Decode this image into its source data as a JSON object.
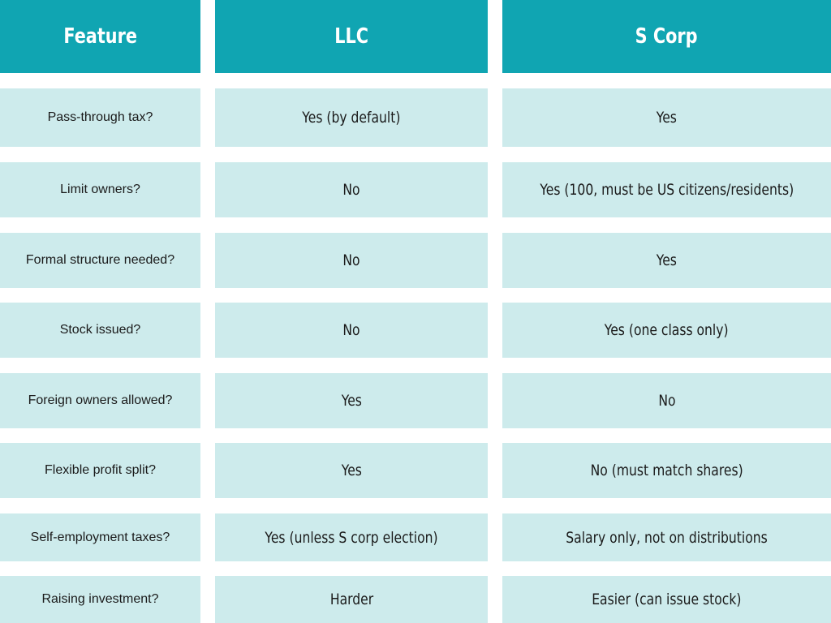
{
  "header": {
    "feature": "Feature",
    "llc": "LLC",
    "scorp": "S Corp"
  },
  "rows": [
    {
      "feature": "Pass-through tax?",
      "llc": "Yes (by default)",
      "scorp": "Yes"
    },
    {
      "feature": "Limit owners?",
      "llc": "No",
      "scorp": "Yes (100, must be US citizens/residents)"
    },
    {
      "feature": "Formal structure needed?",
      "llc": "No",
      "scorp": "Yes"
    },
    {
      "feature": "Stock issued?",
      "llc": "No",
      "scorp": "Yes (one class only)"
    },
    {
      "feature": "Foreign owners allowed?",
      "llc": "Yes",
      "scorp": "No"
    },
    {
      "feature": "Flexible profit split?",
      "llc": "Yes",
      "scorp": "No (must match shares)"
    },
    {
      "feature": "Self-employment taxes?",
      "llc": "Yes (unless S corp election)",
      "scorp": "Salary only, not on distributions"
    },
    {
      "feature": "Raising investment?",
      "llc": "Harder",
      "scorp": "Easier (can issue stock)"
    }
  ],
  "colors": {
    "header_bg": "#10a5b2",
    "row_bg": "#cdebec",
    "header_text": "#ffffff",
    "body_text": "#1a1a1a"
  }
}
